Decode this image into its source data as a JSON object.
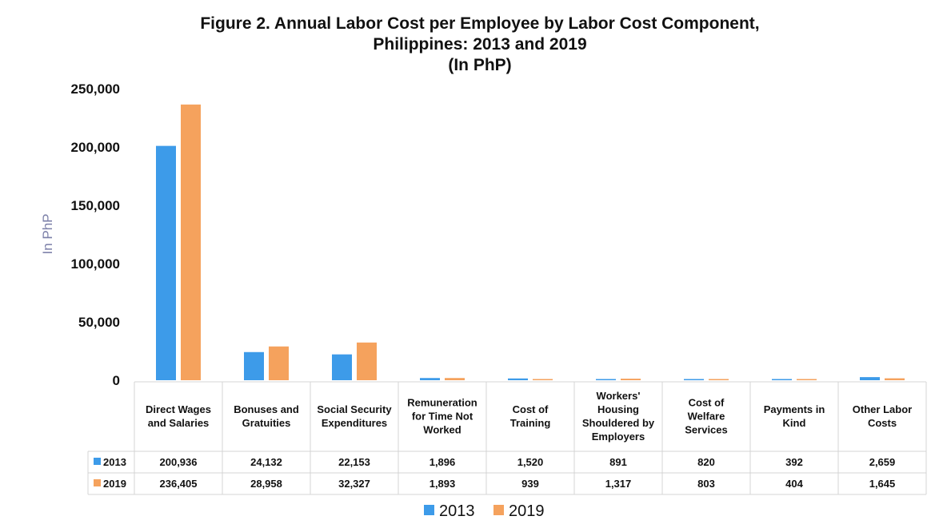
{
  "chart_data": {
    "type": "bar",
    "title_lines": [
      "Figure 2. Annual Labor Cost per Employee by Labor Cost Component,",
      "Philippines: 2013 and 2019",
      "(In PhP)"
    ],
    "ylabel": "In PhP",
    "ylim": [
      0,
      250000
    ],
    "yticks": [
      "0",
      "50,000",
      "100,000",
      "150,000",
      "200,000",
      "250,000"
    ],
    "ytick_values": [
      0,
      50000,
      100000,
      150000,
      200000,
      250000
    ],
    "categories": [
      [
        "Direct Wages",
        "and Salaries"
      ],
      [
        "Bonuses and",
        "Gratuities"
      ],
      [
        "Social Security",
        "Expenditures"
      ],
      [
        "Remuneration",
        "for Time Not",
        "Worked"
      ],
      [
        "Cost of",
        "Training"
      ],
      [
        "Workers'",
        "Housing",
        "Shouldered by",
        "Employers"
      ],
      [
        "Cost of",
        "Welfare",
        "Services"
      ],
      [
        "Payments in",
        "Kind"
      ],
      [
        "Other Labor",
        "Costs"
      ]
    ],
    "series": [
      {
        "name": "2013",
        "color": "#3d9be9",
        "values": [
          200936,
          24132,
          22153,
          1896,
          1520,
          891,
          820,
          392,
          2659
        ],
        "labels": [
          "200,936",
          "24,132",
          "22,153",
          "1,896",
          "1,520",
          "891",
          "820",
          "392",
          "2,659"
        ]
      },
      {
        "name": "2019",
        "color": "#f5a25d",
        "values": [
          236405,
          28958,
          32327,
          1893,
          939,
          1317,
          803,
          404,
          1645
        ],
        "labels": [
          "236,405",
          "28,958",
          "32,327",
          "1,893",
          "939",
          "1,317",
          "803",
          "404",
          "1,645"
        ]
      }
    ],
    "grid": false,
    "legend_position": "bottom",
    "data_table": true
  }
}
